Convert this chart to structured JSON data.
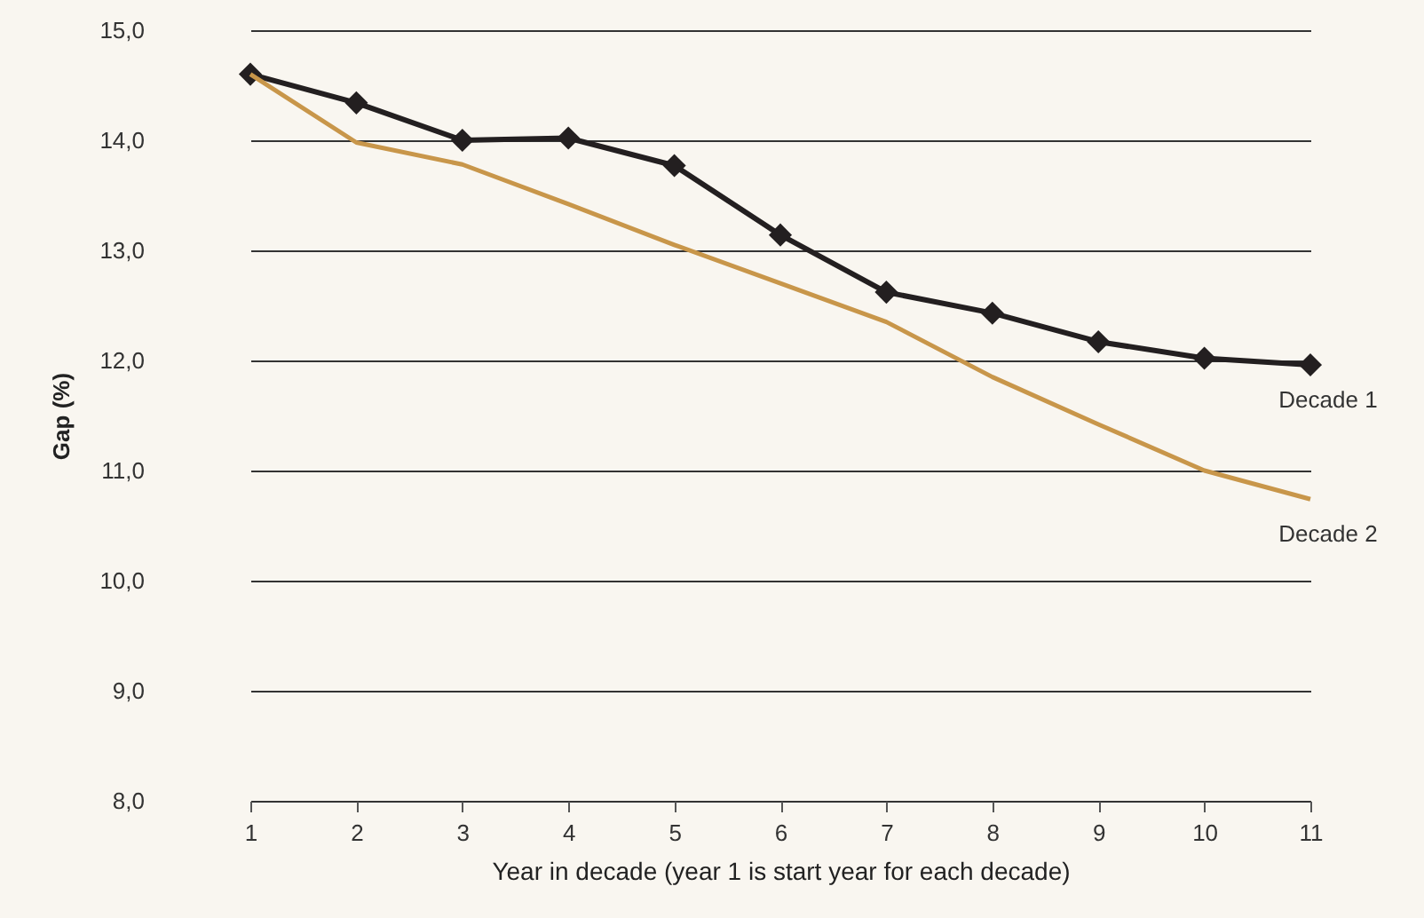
{
  "chart_data": {
    "type": "line",
    "xlabel": "Year in decade (year 1 is start year for each decade)",
    "ylabel": "Gap (%)",
    "categories": [
      "1",
      "2",
      "3",
      "4",
      "5",
      "6",
      "7",
      "8",
      "9",
      "10",
      "11"
    ],
    "series": [
      {
        "name": "Decade 1",
        "color": "#231f20",
        "marker": "diamond",
        "values": [
          14.6,
          14.34,
          14.0,
          14.02,
          13.77,
          13.14,
          12.62,
          12.43,
          12.17,
          12.02,
          11.96
        ]
      },
      {
        "name": "Decade 2",
        "color": "#c8964a",
        "marker": "none",
        "values": [
          14.6,
          13.98,
          13.78,
          13.42,
          13.05,
          12.7,
          12.35,
          11.85,
          11.42,
          11.0,
          10.74
        ]
      }
    ],
    "ylim": [
      8,
      15
    ],
    "yticks": [
      {
        "value": 8,
        "label": "8,0"
      },
      {
        "value": 9,
        "label": "9,0"
      },
      {
        "value": 10,
        "label": "10,0"
      },
      {
        "value": 11,
        "label": "11,0"
      },
      {
        "value": 12,
        "label": "12,0"
      },
      {
        "value": 13,
        "label": "13,0"
      },
      {
        "value": 14,
        "label": "14,0"
      },
      {
        "value": 15,
        "label": "15,0"
      }
    ],
    "grid": "y",
    "legend": false
  }
}
